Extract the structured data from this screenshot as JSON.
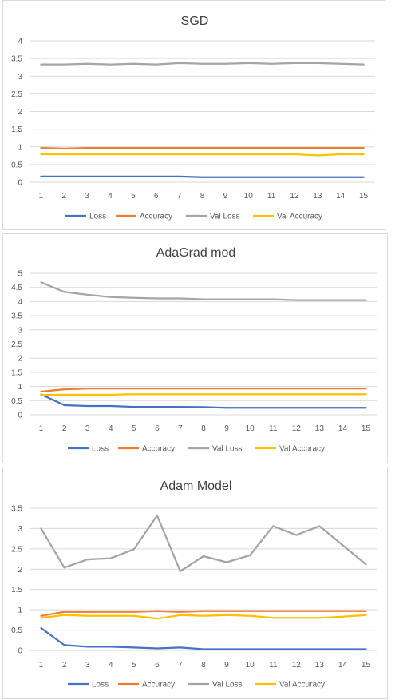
{
  "chart_data": [
    {
      "type": "line",
      "title": "SGD",
      "x": [
        1,
        2,
        3,
        4,
        5,
        6,
        7,
        8,
        9,
        10,
        11,
        12,
        13,
        14,
        15
      ],
      "ylim": [
        0,
        4
      ],
      "yticks": [
        "0",
        "0.5",
        "1",
        "1.5",
        "2",
        "2.5",
        "3",
        "3.5",
        "4"
      ],
      "grid": true,
      "legend_position": "bottom",
      "series": [
        {
          "name": "Loss",
          "color": "#4472C4",
          "values": [
            0.16,
            0.16,
            0.16,
            0.16,
            0.16,
            0.16,
            0.16,
            0.14,
            0.14,
            0.14,
            0.14,
            0.14,
            0.14,
            0.14,
            0.14
          ]
        },
        {
          "name": "Accuracy",
          "color": "#ED7D31",
          "values": [
            0.97,
            0.95,
            0.97,
            0.97,
            0.97,
            0.97,
            0.97,
            0.97,
            0.97,
            0.97,
            0.97,
            0.97,
            0.97,
            0.97,
            0.97
          ]
        },
        {
          "name": "Val Loss",
          "color": "#A5A5A5",
          "values": [
            3.33,
            3.33,
            3.35,
            3.33,
            3.35,
            3.33,
            3.37,
            3.35,
            3.35,
            3.37,
            3.35,
            3.37,
            3.37,
            3.35,
            3.33
          ]
        },
        {
          "name": "Val Accuracy",
          "color": "#FFC000",
          "values": [
            0.79,
            0.79,
            0.79,
            0.79,
            0.79,
            0.79,
            0.79,
            0.79,
            0.79,
            0.79,
            0.79,
            0.79,
            0.76,
            0.79,
            0.79
          ]
        }
      ]
    },
    {
      "type": "line",
      "title": "AdaGrad mod",
      "x": [
        1,
        2,
        3,
        4,
        5,
        6,
        7,
        8,
        9,
        10,
        11,
        12,
        13,
        14,
        15
      ],
      "ylim": [
        0,
        5
      ],
      "yticks": [
        "0",
        "0.5",
        "1",
        "1.5",
        "2",
        "2.5",
        "3",
        "3.5",
        "4",
        "4.5",
        "5"
      ],
      "grid": true,
      "legend_position": "bottom",
      "series": [
        {
          "name": "Loss",
          "color": "#4472C4",
          "values": [
            0.72,
            0.34,
            0.31,
            0.31,
            0.28,
            0.28,
            0.28,
            0.27,
            0.25,
            0.25,
            0.25,
            0.25,
            0.25,
            0.25,
            0.25
          ]
        },
        {
          "name": "Accuracy",
          "color": "#ED7D31",
          "values": [
            0.82,
            0.9,
            0.93,
            0.93,
            0.93,
            0.93,
            0.93,
            0.93,
            0.93,
            0.93,
            0.93,
            0.93,
            0.93,
            0.93,
            0.93
          ]
        },
        {
          "name": "Val Loss",
          "color": "#A5A5A5",
          "values": [
            4.68,
            4.34,
            4.24,
            4.16,
            4.13,
            4.11,
            4.11,
            4.08,
            4.08,
            4.08,
            4.08,
            4.05,
            4.05,
            4.05,
            4.05
          ]
        },
        {
          "name": "Val Accuracy",
          "color": "#FFC000",
          "values": [
            0.7,
            0.71,
            0.71,
            0.71,
            0.73,
            0.73,
            0.73,
            0.73,
            0.73,
            0.73,
            0.73,
            0.73,
            0.73,
            0.73,
            0.73
          ]
        }
      ]
    },
    {
      "type": "line",
      "title": "Adam Model",
      "x": [
        1,
        2,
        3,
        4,
        5,
        6,
        7,
        8,
        9,
        10,
        11,
        12,
        13,
        14,
        15
      ],
      "ylim": [
        0,
        3.5
      ],
      "yticks": [
        "0",
        "0.5",
        "1",
        "1.5",
        "2",
        "2.5",
        "3",
        "3.5"
      ],
      "grid": true,
      "legend_position": "bottom",
      "series": [
        {
          "name": "Loss",
          "color": "#4472C4",
          "values": [
            0.55,
            0.13,
            0.09,
            0.09,
            0.07,
            0.05,
            0.07,
            0.03,
            0.03,
            0.03,
            0.03,
            0.03,
            0.03,
            0.03,
            0.03
          ]
        },
        {
          "name": "Accuracy",
          "color": "#ED7D31",
          "values": [
            0.85,
            0.95,
            0.95,
            0.95,
            0.95,
            0.97,
            0.95,
            0.97,
            0.97,
            0.97,
            0.97,
            0.97,
            0.97,
            0.97,
            0.97
          ]
        },
        {
          "name": "Val Loss",
          "color": "#A5A5A5",
          "values": [
            3.0,
            2.04,
            2.24,
            2.27,
            2.49,
            3.32,
            1.95,
            2.32,
            2.17,
            2.34,
            3.06,
            2.84,
            3.06,
            2.59,
            2.12
          ]
        },
        {
          "name": "Val Accuracy",
          "color": "#FFC000",
          "values": [
            0.8,
            0.87,
            0.85,
            0.85,
            0.85,
            0.78,
            0.87,
            0.85,
            0.87,
            0.85,
            0.8,
            0.8,
            0.8,
            0.83,
            0.87
          ]
        }
      ]
    }
  ]
}
